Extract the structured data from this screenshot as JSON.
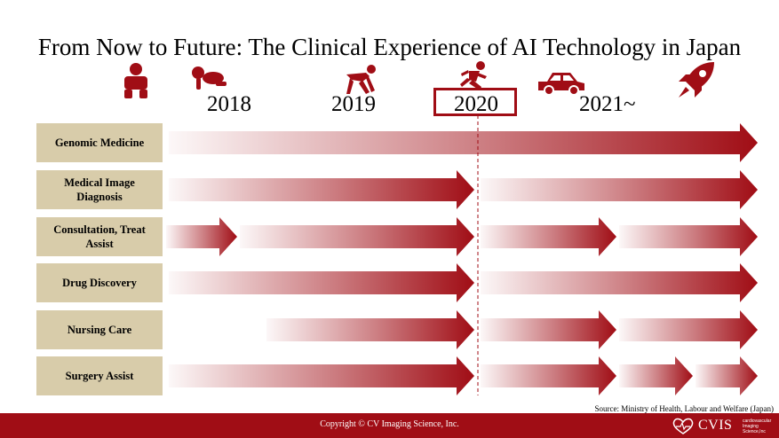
{
  "title": "From Now to Future: The Clinical Experience of AI Technology in Japan",
  "years": [
    "2018",
    "2019",
    "2020",
    "2021~"
  ],
  "icons": [
    "baby-icon",
    "crawling-baby-icon",
    "crouching-runner-icon",
    "running-person-icon",
    "car-icon",
    "rocket-icon"
  ],
  "categories": [
    "Genomic Medicine",
    "Medical Image Diagnosis",
    "Consultation, Treat Assist",
    "Drug Discovery",
    "Nursing Care",
    "Surgery Assist"
  ],
  "source": "Source:  Ministry of Health, Labour and Welfare (Japan)",
  "copyright": "Copyright © CV Imaging Science, Inc.",
  "logo": {
    "name": "CVIS",
    "tagline": "cardiovascular Imaging Science,Inc"
  },
  "colors": {
    "accent": "#a00d15",
    "category_bg": "#d8ccaa"
  }
}
